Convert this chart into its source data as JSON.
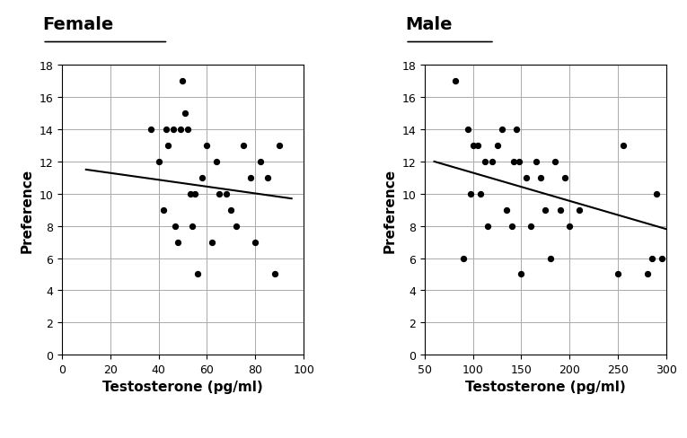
{
  "female": {
    "title": "Female",
    "xlabel": "Testosterone (pg/ml)",
    "ylabel": "Preference",
    "xlim": [
      0,
      100
    ],
    "ylim": [
      0,
      18
    ],
    "xticks": [
      0,
      20,
      40,
      60,
      80,
      100
    ],
    "yticks": [
      0,
      2,
      4,
      6,
      8,
      10,
      12,
      14,
      16,
      18
    ],
    "scatter_x": [
      37,
      40,
      42,
      43,
      44,
      46,
      47,
      48,
      49,
      50,
      51,
      52,
      53,
      54,
      55,
      56,
      58,
      60,
      62,
      64,
      65,
      68,
      70,
      72,
      75,
      78,
      80,
      82,
      85,
      88,
      90
    ],
    "scatter_y": [
      14,
      12,
      9,
      14,
      13,
      14,
      8,
      7,
      14,
      17,
      15,
      14,
      10,
      8,
      10,
      5,
      11,
      13,
      7,
      12,
      10,
      10,
      9,
      8,
      13,
      11,
      7,
      12,
      11,
      5,
      13
    ],
    "trendline_x": [
      10,
      95
    ],
    "trendline_y": [
      11.5,
      9.7
    ]
  },
  "male": {
    "title": "Male",
    "xlabel": "Testosterone (pg/ml)",
    "ylabel": "Preference",
    "xlim": [
      50,
      300
    ],
    "ylim": [
      0,
      18
    ],
    "xticks": [
      50,
      100,
      150,
      200,
      250,
      300
    ],
    "yticks": [
      0,
      2,
      4,
      6,
      8,
      10,
      12,
      14,
      16,
      18
    ],
    "scatter_x": [
      82,
      90,
      95,
      98,
      100,
      105,
      108,
      112,
      115,
      120,
      125,
      130,
      135,
      140,
      142,
      145,
      148,
      150,
      155,
      160,
      165,
      170,
      175,
      180,
      185,
      190,
      195,
      200,
      210,
      250,
      255,
      280,
      285,
      290,
      295
    ],
    "scatter_y": [
      17,
      6,
      14,
      10,
      13,
      13,
      10,
      12,
      8,
      12,
      13,
      14,
      9,
      8,
      12,
      14,
      12,
      5,
      11,
      8,
      12,
      11,
      9,
      6,
      12,
      9,
      11,
      8,
      9,
      5,
      13,
      5,
      6,
      10,
      6
    ],
    "trendline_x": [
      60,
      300
    ],
    "trendline_y": [
      12.0,
      7.8
    ]
  },
  "dot_color": "#000000",
  "dot_size": 18,
  "line_color": "#000000",
  "line_width": 1.5,
  "background_color": "#ffffff",
  "grid_color": "#aaaaaa",
  "title_fontsize": 14,
  "label_fontsize": 11,
  "tick_fontsize": 9,
  "title_underline_widths": {
    "Female": 0.52,
    "Male": 0.37
  }
}
